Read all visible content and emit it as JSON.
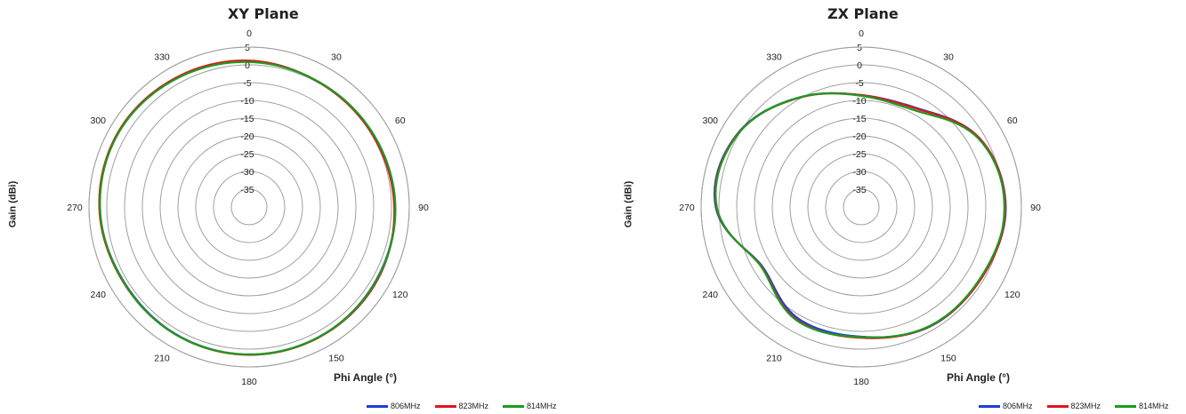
{
  "colors": {
    "grid": "#a0a0a0",
    "806MHz": "#1f3fd6",
    "823MHz": "#e0141c",
    "814MHz": "#1e9a1e"
  },
  "chart_data": [
    {
      "type": "polar-line",
      "title": "XY Plane",
      "xlabel": "Phi Angle (°)",
      "ylabel": "Gain (dBi)",
      "angle_ticks": [
        0,
        30,
        60,
        90,
        120,
        150,
        180,
        210,
        240,
        270,
        300,
        330
      ],
      "radial_ticks": [
        5,
        0,
        -5,
        -10,
        -15,
        -20,
        -25,
        -30,
        -35
      ],
      "rlim": [
        -40,
        5
      ],
      "legend": [
        "806MHz",
        "823MHz",
        "814MHz"
      ],
      "legend_position": "bottom-right",
      "angles": [
        0,
        30,
        60,
        90,
        120,
        150,
        180,
        210,
        240,
        270,
        300,
        330,
        360
      ],
      "series": [
        {
          "name": "806MHz",
          "color": "806MHz",
          "values": [
            1.0,
            0.2,
            0.3,
            1.0,
            1.2,
            1.5,
            1.5,
            1.3,
            1.0,
            2.0,
            2.3,
            1.6,
            1.0
          ]
        },
        {
          "name": "823MHz",
          "color": "823MHz",
          "values": [
            1.2,
            0.2,
            0.2,
            0.8,
            1.5,
            1.6,
            1.6,
            1.4,
            1.2,
            2.1,
            2.4,
            1.8,
            1.2
          ]
        },
        {
          "name": "814MHz",
          "color": "814MHz",
          "values": [
            0.8,
            0.3,
            0.5,
            1.1,
            1.3,
            1.5,
            1.5,
            1.4,
            1.1,
            1.9,
            2.2,
            1.5,
            0.8
          ]
        }
      ]
    },
    {
      "type": "polar-line",
      "title": "ZX Plane",
      "xlabel": "Phi Angle (°)",
      "ylabel": "Gain (dBi)",
      "angle_ticks": [
        0,
        30,
        60,
        90,
        120,
        150,
        180,
        210,
        240,
        270,
        300,
        330
      ],
      "radial_ticks": [
        5,
        0,
        -5,
        -10,
        -15,
        -20,
        -25,
        -30,
        -35
      ],
      "rlim": [
        -40,
        5
      ],
      "legend": [
        "806MHz",
        "823MHz",
        "814MHz"
      ],
      "legend_position": "bottom-right",
      "angles": [
        0,
        30,
        60,
        90,
        120,
        150,
        180,
        210,
        240,
        270,
        300,
        330,
        360
      ],
      "series": [
        {
          "name": "806MHz",
          "color": "806MHz",
          "values": [
            -8.5,
            -8.0,
            -1.5,
            0.6,
            -0.8,
            -1.2,
            -3.5,
            -4.0,
            -7.5,
            0.9,
            0.5,
            -4.5,
            -8.5
          ]
        },
        {
          "name": "823MHz",
          "color": "823MHz",
          "values": [
            -8.5,
            -8.2,
            -1.5,
            0.5,
            -0.7,
            -1.3,
            -3.2,
            -3.5,
            -7.3,
            0.7,
            0.4,
            -4.6,
            -8.5
          ]
        },
        {
          "name": "814MHz",
          "color": "814MHz",
          "values": [
            -8.7,
            -8.8,
            -1.8,
            0.3,
            -1.0,
            -1.4,
            -3.4,
            -3.3,
            -7.2,
            0.6,
            0.3,
            -4.5,
            -8.7
          ]
        }
      ]
    }
  ]
}
